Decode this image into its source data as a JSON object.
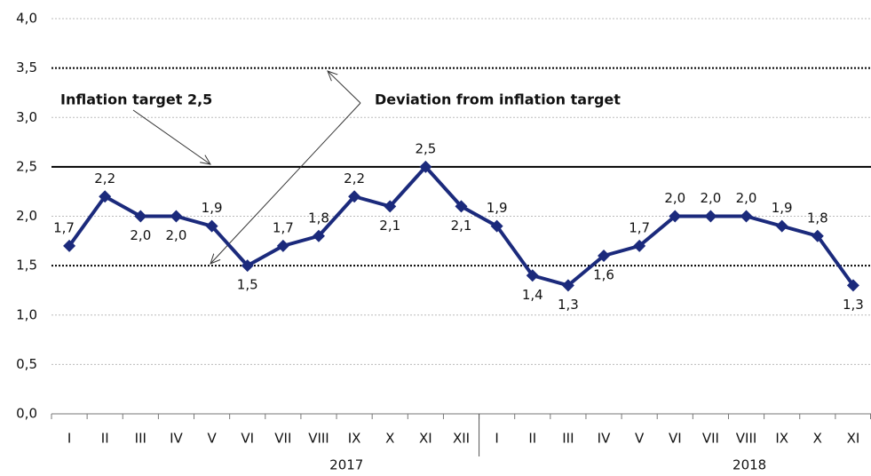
{
  "chart_data": {
    "type": "line",
    "category_groups": [
      {
        "label": "2017",
        "categories": [
          "I",
          "II",
          "III",
          "IV",
          "V",
          "VI",
          "VII",
          "VIII",
          "IX",
          "X",
          "XI",
          "XII"
        ]
      },
      {
        "label": "2018",
        "categories": [
          "I",
          "II",
          "III",
          "IV",
          "V",
          "VI",
          "VII",
          "VIII",
          "IX",
          "X",
          "XI"
        ]
      }
    ],
    "values": [
      1.7,
      2.2,
      2.0,
      2.0,
      1.9,
      1.5,
      1.7,
      1.8,
      2.2,
      2.1,
      2.5,
      2.1,
      1.9,
      1.4,
      1.3,
      1.6,
      1.7,
      2.0,
      2.0,
      2.0,
      1.9,
      1.8,
      1.3
    ],
    "value_labels": [
      "1,7",
      "2,2",
      "2,0",
      "2,0",
      "1,9",
      "1,5",
      "1,7",
      "1,8",
      "2,2",
      "2,1",
      "2,5",
      "2,1",
      "1,9",
      "1,4",
      "1,3",
      "1,6",
      "1,7",
      "2,0",
      "2,0",
      "2,0",
      "1,9",
      "1,8",
      "1,3"
    ],
    "color": "#1b2a7c",
    "ylim": [
      0,
      4
    ],
    "yticks": [
      {
        "value": 0,
        "label": "0,0"
      },
      {
        "value": 0.5,
        "label": "0,5"
      },
      {
        "value": 1,
        "label": "1,0"
      },
      {
        "value": 1.5,
        "label": "1,5"
      },
      {
        "value": 2,
        "label": "2,0"
      },
      {
        "value": 2.5,
        "label": "2,5"
      },
      {
        "value": 3,
        "label": "3,0"
      },
      {
        "value": 3.5,
        "label": "3,5"
      },
      {
        "value": 4,
        "label": "4,0"
      }
    ],
    "grid": true,
    "reference_lines": [
      {
        "value": 2.5,
        "style": "solid"
      },
      {
        "value": 1.5,
        "style": "dotted"
      },
      {
        "value": 3.5,
        "style": "dotted"
      }
    ],
    "annotations": [
      "Inflation target 2,5",
      "Deviation from inflation target"
    ]
  }
}
